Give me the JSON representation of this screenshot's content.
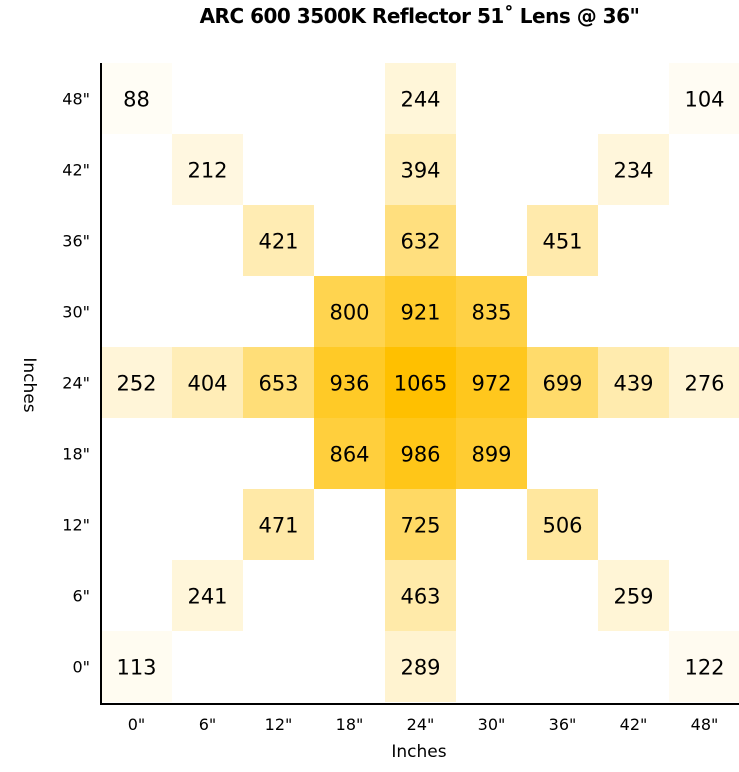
{
  "chart_data": {
    "type": "heatmap",
    "title": "ARC 600 3500K Reflector 51˚ Lens @ 36\"",
    "xlabel": "Inches",
    "ylabel": "Inches",
    "x_ticks": [
      "0\"",
      "6\"",
      "12\"",
      "18\"",
      "24\"",
      "30\"",
      "36\"",
      "42\"",
      "48\""
    ],
    "y_ticks": [
      "0\"",
      "6\"",
      "12\"",
      "18\"",
      "24\"",
      "30\"",
      "36\"",
      "42\"",
      "48\""
    ],
    "color_scale": {
      "low": "#ffffff",
      "high": "#ffc000"
    },
    "grid": false,
    "cells": [
      {
        "x": "0\"",
        "y": "48\"",
        "value": 88
      },
      {
        "x": "24\"",
        "y": "48\"",
        "value": 244
      },
      {
        "x": "48\"",
        "y": "48\"",
        "value": 104
      },
      {
        "x": "6\"",
        "y": "42\"",
        "value": 212
      },
      {
        "x": "24\"",
        "y": "42\"",
        "value": 394
      },
      {
        "x": "42\"",
        "y": "42\"",
        "value": 234
      },
      {
        "x": "12\"",
        "y": "36\"",
        "value": 421
      },
      {
        "x": "24\"",
        "y": "36\"",
        "value": 632
      },
      {
        "x": "36\"",
        "y": "36\"",
        "value": 451
      },
      {
        "x": "18\"",
        "y": "30\"",
        "value": 800
      },
      {
        "x": "24\"",
        "y": "30\"",
        "value": 921
      },
      {
        "x": "30\"",
        "y": "30\"",
        "value": 835
      },
      {
        "x": "0\"",
        "y": "24\"",
        "value": 252
      },
      {
        "x": "6\"",
        "y": "24\"",
        "value": 404
      },
      {
        "x": "12\"",
        "y": "24\"",
        "value": 653
      },
      {
        "x": "18\"",
        "y": "24\"",
        "value": 936
      },
      {
        "x": "24\"",
        "y": "24\"",
        "value": 1065
      },
      {
        "x": "30\"",
        "y": "24\"",
        "value": 972
      },
      {
        "x": "36\"",
        "y": "24\"",
        "value": 699
      },
      {
        "x": "42\"",
        "y": "24\"",
        "value": 439
      },
      {
        "x": "48\"",
        "y": "24\"",
        "value": 276
      },
      {
        "x": "18\"",
        "y": "18\"",
        "value": 864
      },
      {
        "x": "24\"",
        "y": "18\"",
        "value": 986
      },
      {
        "x": "30\"",
        "y": "18\"",
        "value": 899
      },
      {
        "x": "12\"",
        "y": "12\"",
        "value": 471
      },
      {
        "x": "24\"",
        "y": "12\"",
        "value": 725
      },
      {
        "x": "36\"",
        "y": "12\"",
        "value": 506
      },
      {
        "x": "6\"",
        "y": "6\"",
        "value": 241
      },
      {
        "x": "24\"",
        "y": "6\"",
        "value": 463
      },
      {
        "x": "42\"",
        "y": "6\"",
        "value": 259
      },
      {
        "x": "0\"",
        "y": "0\"",
        "value": 113
      },
      {
        "x": "24\"",
        "y": "0\"",
        "value": 289
      },
      {
        "x": "48\"",
        "y": "0\"",
        "value": 122
      }
    ]
  }
}
